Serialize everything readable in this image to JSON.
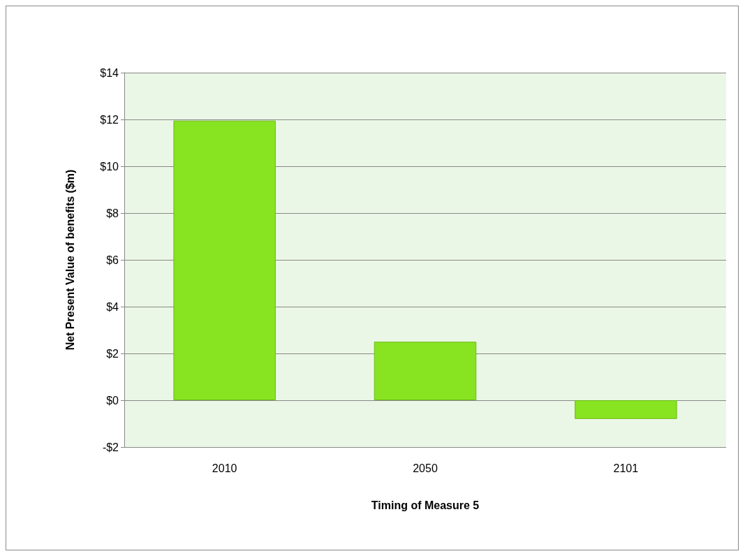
{
  "chart_data": {
    "type": "bar",
    "xlabel": "Timing of Measure 5",
    "ylabel": "Net Present Value of benefits ($m)",
    "categories": [
      "2010",
      "2050",
      "2101"
    ],
    "values": [
      11.95,
      2.5,
      -0.8
    ],
    "color": "#88e320",
    "ylim": [
      -2,
      14
    ],
    "yticks": [
      {
        "value": -2,
        "label": "-$2"
      },
      {
        "value": 0,
        "label": "$0"
      },
      {
        "value": 2,
        "label": "$2"
      },
      {
        "value": 4,
        "label": "$4"
      },
      {
        "value": 6,
        "label": "$6"
      },
      {
        "value": 8,
        "label": "$8"
      },
      {
        "value": 10,
        "label": "$10"
      },
      {
        "value": 12,
        "label": "$12"
      },
      {
        "value": 14,
        "label": "$14"
      }
    ],
    "grid": "y"
  }
}
